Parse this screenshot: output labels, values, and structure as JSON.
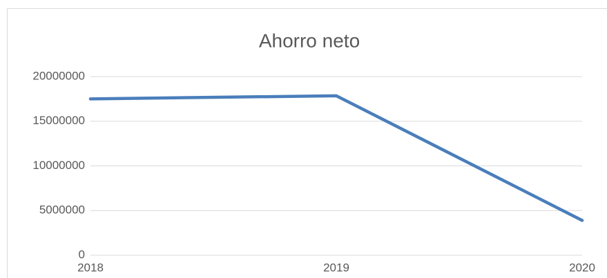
{
  "chart_data": {
    "type": "line",
    "title": "Ahorro neto",
    "categories": [
      "2018",
      "2019",
      "2020"
    ],
    "series": [
      {
        "name": "Ahorro neto",
        "color": "#4a7ebb",
        "values": [
          17500000,
          17850000,
          3900000
        ]
      }
    ],
    "ylim": [
      0,
      20000000
    ],
    "yticks": [
      0,
      5000000,
      10000000,
      15000000,
      20000000
    ],
    "grid": true
  }
}
